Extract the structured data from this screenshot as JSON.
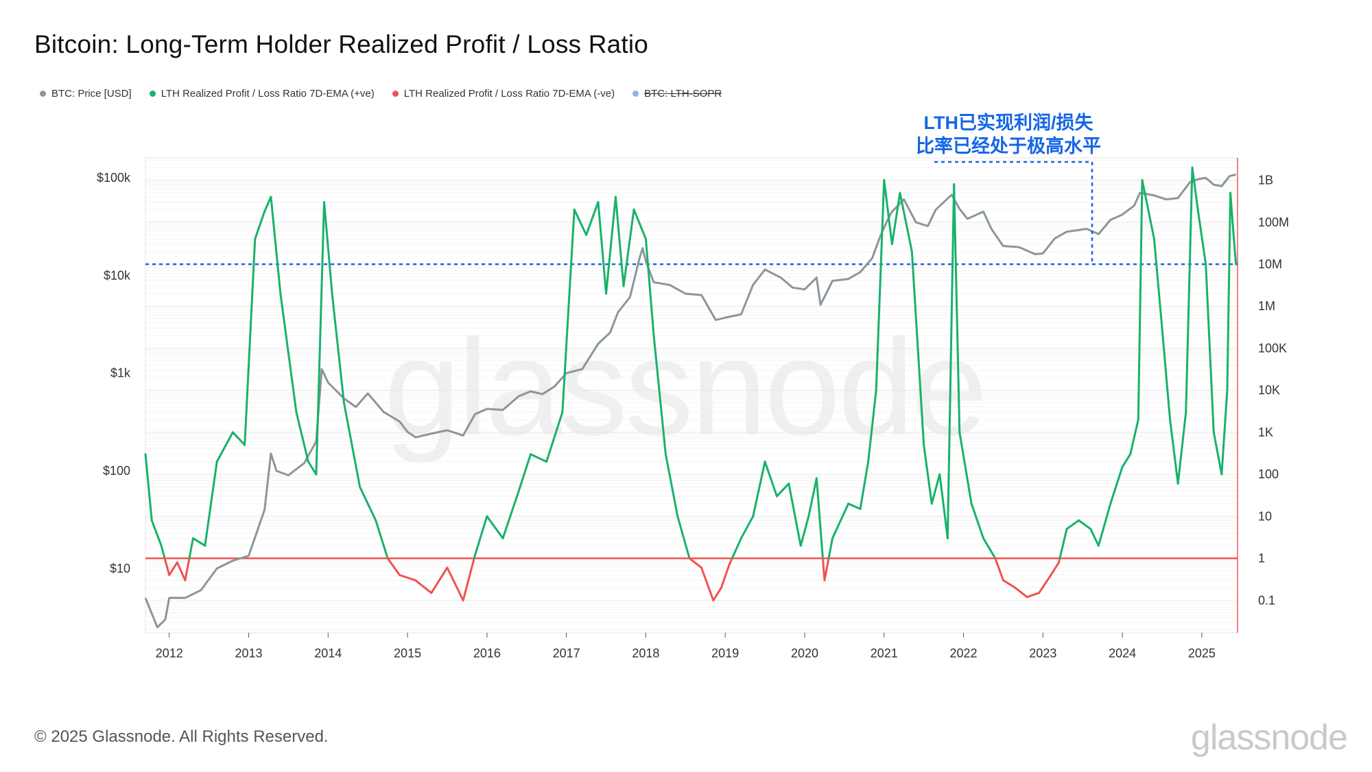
{
  "title": "Bitcoin: Long-Term Holder Realized Profit / Loss Ratio",
  "legend": [
    {
      "label": "BTC: Price [USD]",
      "color": "#8a969b",
      "struck": false
    },
    {
      "label": "LTH Realized Profit / Loss Ratio 7D-EMA (+ve)",
      "color": "#17b26a",
      "struck": false
    },
    {
      "label": "LTH Realized Profit / Loss Ratio 7D-EMA (-ve)",
      "color": "#f05252",
      "struck": false
    },
    {
      "label": "BTC: LTH-SOPR",
      "color": "#8fb3f0",
      "struck": true
    }
  ],
  "annotation": {
    "line1": "LTH已实现利润/损失",
    "line2": "比率已经处于极高水平",
    "color": "#1565e6"
  },
  "watermark": "glassnode",
  "footer": {
    "copyright": "© 2025 Glassnode. All Rights Reserved.",
    "logo": "glassnode"
  },
  "chart_data": {
    "type": "line",
    "x_axis": {
      "ticks": [
        "2012",
        "2013",
        "2014",
        "2015",
        "2016",
        "2017",
        "2018",
        "2019",
        "2020",
        "2021",
        "2022",
        "2023",
        "2024",
        "2025"
      ],
      "range": [
        2011.7,
        2025.45
      ]
    },
    "y_left": {
      "scale": "log",
      "range": [
        2.2,
        160000
      ],
      "ticks": [
        {
          "v": 100000,
          "label": "$100k"
        },
        {
          "v": 10000,
          "label": "$10k"
        },
        {
          "v": 1000,
          "label": "$1k"
        },
        {
          "v": 100,
          "label": "$100"
        },
        {
          "v": 10,
          "label": "$10"
        }
      ]
    },
    "y_right": {
      "scale": "log",
      "range": [
        0.017,
        3400000000
      ],
      "ticks": [
        {
          "v": 1000000000,
          "label": "1B"
        },
        {
          "v": 100000000,
          "label": "100M"
        },
        {
          "v": 10000000,
          "label": "10M"
        },
        {
          "v": 1000000,
          "label": "1M"
        },
        {
          "v": 100000,
          "label": "100K"
        },
        {
          "v": 10000,
          "label": "10K"
        },
        {
          "v": 1000,
          "label": "1K"
        },
        {
          "v": 100,
          "label": "100"
        },
        {
          "v": 10,
          "label": "10"
        },
        {
          "v": 1,
          "label": "1"
        },
        {
          "v": 0.1,
          "label": "0.1"
        }
      ]
    },
    "reference_lines": [
      {
        "axis": "right",
        "value": 1,
        "color": "#f05252",
        "style": "solid"
      },
      {
        "axis": "right",
        "value": 10000000,
        "color": "#1565e6",
        "style": "dashed"
      }
    ],
    "series": [
      {
        "name": "BTC: Price [USD]",
        "axis": "left",
        "color": "#8a969b",
        "points": [
          [
            2011.7,
            5
          ],
          [
            2011.85,
            2.5
          ],
          [
            2011.95,
            3
          ],
          [
            2012.0,
            5
          ],
          [
            2012.2,
            5
          ],
          [
            2012.4,
            6
          ],
          [
            2012.6,
            10
          ],
          [
            2012.8,
            12
          ],
          [
            2013.0,
            13.5
          ],
          [
            2013.2,
            40
          ],
          [
            2013.28,
            150
          ],
          [
            2013.35,
            100
          ],
          [
            2013.5,
            90
          ],
          [
            2013.7,
            120
          ],
          [
            2013.85,
            200
          ],
          [
            2013.92,
            1100
          ],
          [
            2014.0,
            800
          ],
          [
            2014.2,
            550
          ],
          [
            2014.35,
            450
          ],
          [
            2014.5,
            620
          ],
          [
            2014.7,
            400
          ],
          [
            2014.9,
            320
          ],
          [
            2015.0,
            250
          ],
          [
            2015.1,
            220
          ],
          [
            2015.3,
            240
          ],
          [
            2015.5,
            260
          ],
          [
            2015.7,
            230
          ],
          [
            2015.85,
            380
          ],
          [
            2016.0,
            430
          ],
          [
            2016.2,
            420
          ],
          [
            2016.4,
            580
          ],
          [
            2016.55,
            650
          ],
          [
            2016.7,
            610
          ],
          [
            2016.85,
            730
          ],
          [
            2017.0,
            1000
          ],
          [
            2017.2,
            1100
          ],
          [
            2017.4,
            2000
          ],
          [
            2017.55,
            2600
          ],
          [
            2017.65,
            4200
          ],
          [
            2017.8,
            6000
          ],
          [
            2017.92,
            15000
          ],
          [
            2017.96,
            19000
          ],
          [
            2018.0,
            14000
          ],
          [
            2018.1,
            8500
          ],
          [
            2018.3,
            8000
          ],
          [
            2018.5,
            6500
          ],
          [
            2018.7,
            6300
          ],
          [
            2018.88,
            3500
          ],
          [
            2019.0,
            3700
          ],
          [
            2019.2,
            4000
          ],
          [
            2019.35,
            8000
          ],
          [
            2019.5,
            11500
          ],
          [
            2019.7,
            9500
          ],
          [
            2019.85,
            7500
          ],
          [
            2020.0,
            7200
          ],
          [
            2020.15,
            9500
          ],
          [
            2020.2,
            5000
          ],
          [
            2020.35,
            8800
          ],
          [
            2020.55,
            9200
          ],
          [
            2020.7,
            10800
          ],
          [
            2020.85,
            15000
          ],
          [
            2020.95,
            25000
          ],
          [
            2021.05,
            38000
          ],
          [
            2021.1,
            45000
          ],
          [
            2021.25,
            60000
          ],
          [
            2021.4,
            35000
          ],
          [
            2021.55,
            32000
          ],
          [
            2021.65,
            47000
          ],
          [
            2021.85,
            67000
          ],
          [
            2021.95,
            48000
          ],
          [
            2022.05,
            38000
          ],
          [
            2022.25,
            45000
          ],
          [
            2022.35,
            30000
          ],
          [
            2022.5,
            20000
          ],
          [
            2022.7,
            19500
          ],
          [
            2022.9,
            16500
          ],
          [
            2023.0,
            16800
          ],
          [
            2023.15,
            24000
          ],
          [
            2023.3,
            28000
          ],
          [
            2023.55,
            30000
          ],
          [
            2023.7,
            26500
          ],
          [
            2023.85,
            37000
          ],
          [
            2024.0,
            42000
          ],
          [
            2024.15,
            52000
          ],
          [
            2024.22,
            70000
          ],
          [
            2024.4,
            66000
          ],
          [
            2024.55,
            60000
          ],
          [
            2024.7,
            62000
          ],
          [
            2024.85,
            90000
          ],
          [
            2024.96,
            97000
          ],
          [
            2025.05,
            100000
          ],
          [
            2025.15,
            85000
          ],
          [
            2025.25,
            82000
          ],
          [
            2025.35,
            104000
          ],
          [
            2025.43,
            108000
          ]
        ]
      },
      {
        "name": "LTH Realized Profit / Loss Ratio 7D-EMA",
        "axis": "right",
        "color_positive": "#17b26a",
        "color_negative": "#f05252",
        "points": [
          [
            2011.7,
            300
          ],
          [
            2011.78,
            8
          ],
          [
            2011.9,
            2
          ],
          [
            2012.0,
            0.4
          ],
          [
            2012.1,
            0.8
          ],
          [
            2012.2,
            0.3
          ],
          [
            2012.3,
            3
          ],
          [
            2012.45,
            2
          ],
          [
            2012.6,
            200
          ],
          [
            2012.8,
            1000
          ],
          [
            2012.95,
            500
          ],
          [
            2013.08,
            40000000
          ],
          [
            2013.2,
            180000000
          ],
          [
            2013.28,
            400000000
          ],
          [
            2013.4,
            2000000
          ],
          [
            2013.6,
            3000
          ],
          [
            2013.75,
            200
          ],
          [
            2013.85,
            100
          ],
          [
            2013.95,
            300000000
          ],
          [
            2014.05,
            2000000
          ],
          [
            2014.2,
            5000
          ],
          [
            2014.4,
            50
          ],
          [
            2014.6,
            8
          ],
          [
            2014.75,
            1
          ],
          [
            2014.9,
            0.4
          ],
          [
            2015.1,
            0.3
          ],
          [
            2015.3,
            0.15
          ],
          [
            2015.5,
            0.6
          ],
          [
            2015.7,
            0.1
          ],
          [
            2015.85,
            1.2
          ],
          [
            2016.0,
            10
          ],
          [
            2016.2,
            3
          ],
          [
            2016.4,
            40
          ],
          [
            2016.55,
            300
          ],
          [
            2016.75,
            200
          ],
          [
            2016.95,
            3000
          ],
          [
            2017.1,
            200000000
          ],
          [
            2017.25,
            50000000
          ],
          [
            2017.4,
            300000000
          ],
          [
            2017.5,
            2000000
          ],
          [
            2017.62,
            400000000
          ],
          [
            2017.72,
            3000000
          ],
          [
            2017.85,
            200000000
          ],
          [
            2018.0,
            40000000
          ],
          [
            2018.1,
            200000
          ],
          [
            2018.25,
            300
          ],
          [
            2018.4,
            10
          ],
          [
            2018.55,
            1
          ],
          [
            2018.7,
            0.6
          ],
          [
            2018.85,
            0.1
          ],
          [
            2018.95,
            0.2
          ],
          [
            2019.05,
            0.7
          ],
          [
            2019.2,
            3
          ],
          [
            2019.35,
            10
          ],
          [
            2019.5,
            200
          ],
          [
            2019.65,
            30
          ],
          [
            2019.8,
            60
          ],
          [
            2019.95,
            2
          ],
          [
            2020.05,
            10
          ],
          [
            2020.15,
            80
          ],
          [
            2020.25,
            0.3
          ],
          [
            2020.35,
            3
          ],
          [
            2020.55,
            20
          ],
          [
            2020.7,
            15
          ],
          [
            2020.8,
            200
          ],
          [
            2020.9,
            10000
          ],
          [
            2021.0,
            1000000000
          ],
          [
            2021.1,
            30000000
          ],
          [
            2021.2,
            500000000
          ],
          [
            2021.35,
            20000000
          ],
          [
            2021.5,
            500
          ],
          [
            2021.6,
            20
          ],
          [
            2021.7,
            100
          ],
          [
            2021.8,
            3
          ],
          [
            2021.88,
            800000000
          ],
          [
            2021.95,
            1000
          ],
          [
            2022.1,
            20
          ],
          [
            2022.25,
            3
          ],
          [
            2022.4,
            1
          ],
          [
            2022.5,
            0.3
          ],
          [
            2022.65,
            0.2
          ],
          [
            2022.8,
            0.12
          ],
          [
            2022.95,
            0.15
          ],
          [
            2023.1,
            0.4
          ],
          [
            2023.2,
            0.8
          ],
          [
            2023.3,
            5
          ],
          [
            2023.45,
            8
          ],
          [
            2023.6,
            5
          ],
          [
            2023.7,
            2
          ],
          [
            2023.85,
            20
          ],
          [
            2024.0,
            150
          ],
          [
            2024.1,
            300
          ],
          [
            2024.2,
            2000
          ],
          [
            2024.25,
            1000000000
          ],
          [
            2024.4,
            40000000
          ],
          [
            2024.5,
            300000
          ],
          [
            2024.6,
            2000
          ],
          [
            2024.7,
            60
          ],
          [
            2024.8,
            3000
          ],
          [
            2024.88,
            2000000000
          ],
          [
            2024.95,
            200000000
          ],
          [
            2025.05,
            10000000
          ],
          [
            2025.15,
            1000
          ],
          [
            2025.25,
            100
          ],
          [
            2025.32,
            10000
          ],
          [
            2025.36,
            500000000
          ],
          [
            2025.4,
            50000000
          ],
          [
            2025.43,
            10000000
          ]
        ]
      }
    ],
    "grid": true
  }
}
